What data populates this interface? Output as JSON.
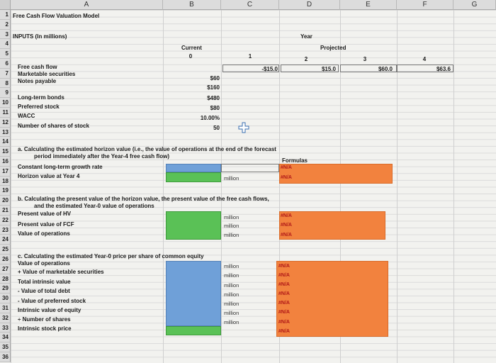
{
  "columns": [
    "A",
    "B",
    "C",
    "D",
    "E",
    "F",
    "G"
  ],
  "rows": [
    "1",
    "2",
    "3",
    "4",
    "5",
    "6",
    "7",
    "8",
    "9",
    "10",
    "11",
    "12",
    "13",
    "14",
    "15",
    "16",
    "17",
    "18",
    "19",
    "20",
    "21",
    "22",
    "23",
    "24",
    "25",
    "26",
    "27",
    "28",
    "29",
    "30",
    "31",
    "32",
    "33",
    "34",
    "35",
    "36"
  ],
  "title": "Free Cash Flow Valuation Model",
  "inputs_label": "INPUTS (In millions)",
  "year_label": "Year",
  "current_label": "Current",
  "projected_label": "Projected",
  "year_numbers": [
    "0",
    "1",
    "2",
    "3",
    "4"
  ],
  "labels": {
    "r6": "Free cash flow",
    "r7": "Marketable securities",
    "r8": "Notes payable",
    "r9": "Long-term bonds",
    "r10": "Preferred stock",
    "r11": "WACC",
    "r12": "Number of shares of stock"
  },
  "values": {
    "r7": "$60",
    "r8": "$160",
    "r9": "$480",
    "r10": "$80",
    "r11": "10.00%",
    "r12": "50"
  },
  "fcf": [
    "-$15.0",
    "$15.0",
    "$60.0",
    "$63.6"
  ],
  "section_a": {
    "line1": "a. Calculating the estimated horizon value (i.e., the value of operations at the end of the forecast",
    "line2": "period immediately after the Year-4 free cash flow)",
    "formulas": "Formulas",
    "r16": "Constant long-term growth rate",
    "r17": "Horizon value at Year 4",
    "unit": "million",
    "na": "#N/A"
  },
  "section_b": {
    "line1": "b. Calculating the present value of the horizon value, the present value of the free cash flows,",
    "line2": "and the estimated Year-0 value of operations",
    "r21": "Present value of HV",
    "r22": "Present value of FCF",
    "r23": "Value of operations",
    "unit": "million",
    "na": "#N/A"
  },
  "section_c": {
    "line1": "c. Calculating the estimated Year-0 price per share of common equity",
    "rows": [
      "Value of operations",
      "+ Value of marketable securities",
      "Total intrinsic value",
      "- Value of total debt",
      "- Value of preferred stock",
      "Intrinsic value of equity",
      "÷ Number of shares",
      "Intrinsic stock price"
    ],
    "units": [
      "million",
      "million",
      "million",
      "million",
      "million",
      "million",
      "million"
    ],
    "na": "#N/A"
  },
  "colors": {
    "input_blue": "#6fa0d8",
    "calc_green": "#5ac156",
    "formula_orange": "#f2823e"
  },
  "icons": [
    "cell-cursor-plus-icon"
  ]
}
